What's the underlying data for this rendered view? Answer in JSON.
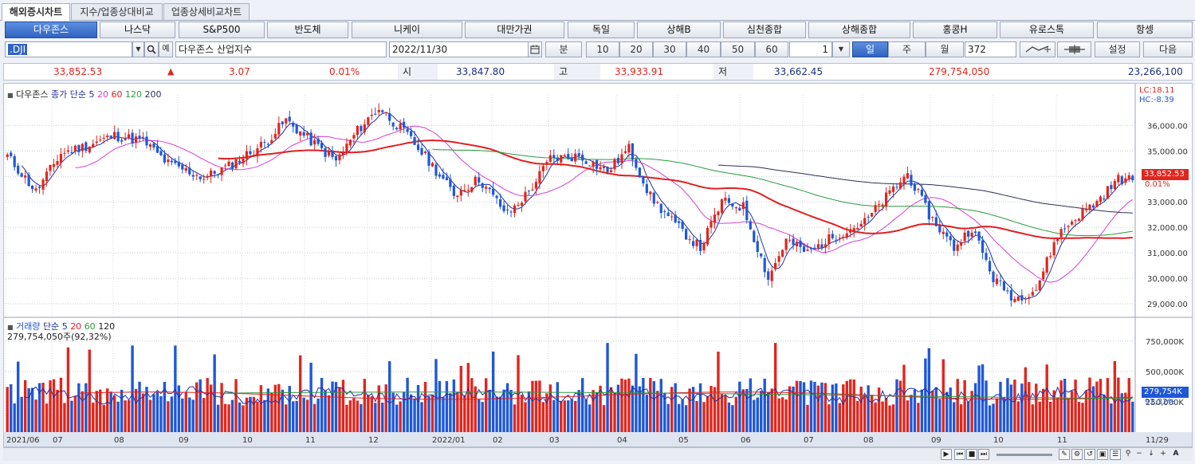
{
  "tabs": [
    "해외증시차트",
    "지수/업종상대비교",
    "업종상세비교차트"
  ],
  "markets": [
    "다우존스",
    "나스닥",
    "S&P500",
    "반도체",
    "니케이",
    "대만가권",
    "독일",
    "상해B",
    "심천종합",
    "상해종합",
    "홍콩H",
    "유로스톡",
    "항셍"
  ],
  "controls": {
    "symbol": ".DJI",
    "name": "다우존스 산업지수",
    "date": "2022/11/30",
    "unit_label": "분",
    "minutes": [
      "10",
      "20",
      "30",
      "40",
      "50",
      "60"
    ],
    "spin_value": "1",
    "periods": [
      "일",
      "주",
      "월"
    ],
    "count": "372",
    "settings": "설정",
    "next": "다음"
  },
  "quote": {
    "price": "33,852.53",
    "change": "3.07",
    "rate": "0.01%",
    "open_label": "시",
    "open": "33,847.80",
    "high_label": "고",
    "high": "33,933.91",
    "low_label": "저",
    "low": "33,662.45",
    "volume": "279,754,050",
    "amount": "23,266,100"
  },
  "legend": {
    "name": "다우존스",
    "type": "종가 단순",
    "ma": [
      "5",
      "20",
      "60",
      "120",
      "200"
    ]
  },
  "vol_legend": {
    "name": "거래량",
    "type": "단순",
    "ma": [
      "5",
      "20",
      "60",
      "120"
    ],
    "last": "279,754,050주(92,32%)"
  },
  "price_axis": {
    "labels": [
      "36,000.00",
      "35,000.00",
      "34,000.00",
      "33,000.00",
      "32,000.00",
      "31,000.00",
      "30,000.00",
      "29,000.00"
    ],
    "lc": "LC:18.11",
    "hc": "HC:-8.39",
    "cur": "33,852.53",
    "pct": "0.01%"
  },
  "vol_axis": {
    "labels": [
      "750,000K",
      "500,000K",
      "250,000K"
    ],
    "cur": "279,754K",
    "pct": "92,32%"
  },
  "months": [
    "2021/06",
    "07",
    "08",
    "09",
    "10",
    "11",
    "12",
    "2022/01",
    "02",
    "03",
    "04",
    "05",
    "06",
    "07",
    "08",
    "09",
    "10",
    "11"
  ],
  "end_date": "11/29",
  "colors": {
    "up": "#e0261e",
    "down": "#1f58d6",
    "ma5": "#1f2fa6",
    "ma20": "#d63fd6",
    "ma60": "#e02020",
    "ma120": "#2a9a3a",
    "ma200": "#2b2f55"
  },
  "chart_data": {
    "type": "candlestick",
    "ylim": [
      28500,
      37200
    ],
    "anchors": [
      [
        0,
        34800
      ],
      [
        8,
        33400
      ],
      [
        15,
        34900
      ],
      [
        22,
        35200
      ],
      [
        30,
        35600
      ],
      [
        38,
        35400
      ],
      [
        45,
        34500
      ],
      [
        55,
        33950
      ],
      [
        62,
        34400
      ],
      [
        72,
        35300
      ],
      [
        78,
        36200
      ],
      [
        84,
        35500
      ],
      [
        92,
        34600
      ],
      [
        98,
        35800
      ],
      [
        104,
        36700
      ],
      [
        112,
        35600
      ],
      [
        118,
        34600
      ],
      [
        125,
        33300
      ],
      [
        132,
        33900
      ],
      [
        140,
        32500
      ],
      [
        146,
        33400
      ],
      [
        152,
        34700
      ],
      [
        160,
        34800
      ],
      [
        168,
        34200
      ],
      [
        174,
        35100
      ],
      [
        180,
        33200
      ],
      [
        187,
        32100
      ],
      [
        194,
        31200
      ],
      [
        200,
        33000
      ],
      [
        206,
        32800
      ],
      [
        213,
        30000
      ],
      [
        218,
        31500
      ],
      [
        224,
        31000
      ],
      [
        232,
        31700
      ],
      [
        240,
        32200
      ],
      [
        248,
        33500
      ],
      [
        252,
        34100
      ],
      [
        258,
        32500
      ],
      [
        265,
        31200
      ],
      [
        270,
        32000
      ],
      [
        276,
        30000
      ],
      [
        282,
        29200
      ],
      [
        288,
        29600
      ],
      [
        294,
        31700
      ],
      [
        300,
        32500
      ],
      [
        305,
        33000
      ],
      [
        311,
        33900
      ],
      [
        315,
        33850
      ]
    ],
    "vol_ylim": [
      0,
      900000
    ]
  }
}
